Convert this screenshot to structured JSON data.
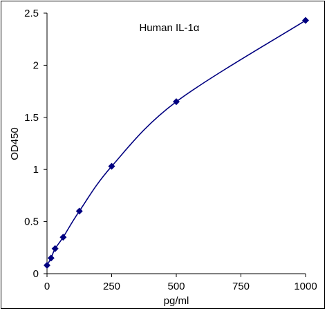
{
  "chart_data": {
    "type": "line",
    "title": "Human IL-1α",
    "xlabel": "pg/ml",
    "ylabel": "OD450",
    "xlim": [
      0,
      1000
    ],
    "ylim": [
      0,
      2.5
    ],
    "xticks": [
      0,
      250,
      500,
      750,
      1000
    ],
    "yticks": [
      0,
      0.5,
      1,
      1.5,
      2,
      2.5
    ],
    "xtick_labels": [
      "0",
      "250",
      "500",
      "750",
      "1000"
    ],
    "ytick_labels": [
      "0",
      "0.5",
      "1",
      "1.5",
      "2",
      "2.5"
    ],
    "grid": false,
    "legend": "none",
    "series": [
      {
        "x": [
          0,
          15.6,
          31.25,
          62.5,
          125,
          250,
          500,
          1000
        ],
        "y": [
          0.08,
          0.15,
          0.24,
          0.35,
          0.6,
          1.03,
          1.65,
          2.43
        ],
        "marker": "diamond",
        "color": "#000080"
      }
    ]
  }
}
